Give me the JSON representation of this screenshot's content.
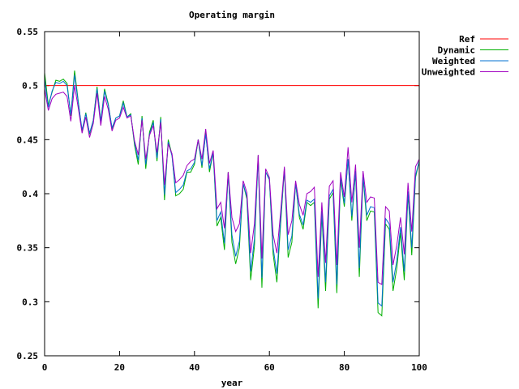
{
  "chart_data": {
    "type": "line",
    "title": "Operating margin",
    "xlabel": "year",
    "ylabel": "",
    "xlim": [
      0,
      100
    ],
    "ylim": [
      0.25,
      0.55
    ],
    "xticks": [
      0,
      20,
      40,
      60,
      80,
      100
    ],
    "xtick_labels": [
      "0",
      "20",
      "40",
      "60",
      "80",
      "100"
    ],
    "yticks": [
      0.25,
      0.3,
      0.35,
      0.4,
      0.45,
      0.5,
      0.55
    ],
    "ytick_labels": [
      "0.25",
      "0.3",
      "0.35",
      "0.4",
      "0.45",
      "0.5",
      "0.55"
    ],
    "grid": false,
    "legend_position": "top-right outside",
    "series": [
      {
        "name": "Ref",
        "color": "#ff0000",
        "x": [
          0,
          100
        ],
        "y": [
          0.5,
          0.5
        ]
      },
      {
        "name": "Dynamic",
        "color": "#00b000",
        "x": [
          0,
          1,
          2,
          3,
          4,
          5,
          6,
          7,
          8,
          9,
          10,
          11,
          12,
          13,
          14,
          15,
          16,
          17,
          18,
          19,
          20,
          21,
          22,
          23,
          24,
          25,
          26,
          27,
          28,
          29,
          30,
          31,
          32,
          33,
          34,
          35,
          36,
          37,
          38,
          39,
          40,
          41,
          42,
          43,
          44,
          45,
          46,
          47,
          48,
          49,
          50,
          51,
          52,
          53,
          54,
          55,
          56,
          57,
          58,
          59,
          60,
          61,
          62,
          63,
          64,
          65,
          66,
          67,
          68,
          69,
          70,
          71,
          72,
          73,
          74,
          75,
          76,
          77,
          78,
          79,
          80,
          81,
          82,
          83,
          84,
          85,
          86,
          87,
          88,
          89,
          90,
          91,
          92,
          93,
          94,
          95,
          96,
          97,
          98,
          99,
          100
        ],
        "y": [
          0.512,
          0.482,
          0.494,
          0.505,
          0.504,
          0.506,
          0.502,
          0.472,
          0.514,
          0.485,
          0.457,
          0.475,
          0.455,
          0.468,
          0.499,
          0.467,
          0.497,
          0.483,
          0.46,
          0.47,
          0.472,
          0.486,
          0.471,
          0.474,
          0.445,
          0.427,
          0.472,
          0.423,
          0.457,
          0.468,
          0.43,
          0.471,
          0.394,
          0.45,
          0.436,
          0.398,
          0.4,
          0.404,
          0.42,
          0.42,
          0.427,
          0.45,
          0.424,
          0.457,
          0.42,
          0.438,
          0.37,
          0.378,
          0.348,
          0.42,
          0.355,
          0.335,
          0.35,
          0.409,
          0.395,
          0.32,
          0.351,
          0.435,
          0.313,
          0.42,
          0.413,
          0.344,
          0.318,
          0.372,
          0.423,
          0.341,
          0.355,
          0.41,
          0.378,
          0.367,
          0.392,
          0.389,
          0.392,
          0.294,
          0.381,
          0.31,
          0.395,
          0.401,
          0.308,
          0.413,
          0.388,
          0.432,
          0.375,
          0.42,
          0.323,
          0.415,
          0.375,
          0.384,
          0.383,
          0.29,
          0.287,
          0.372,
          0.367,
          0.31,
          0.331,
          0.364,
          0.32,
          0.4,
          0.343,
          0.415,
          0.43
        ]
      },
      {
        "name": "Weighted",
        "color": "#0070d0",
        "x": [
          0,
          1,
          2,
          3,
          4,
          5,
          6,
          7,
          8,
          9,
          10,
          11,
          12,
          13,
          14,
          15,
          16,
          17,
          18,
          19,
          20,
          21,
          22,
          23,
          24,
          25,
          26,
          27,
          28,
          29,
          30,
          31,
          32,
          33,
          34,
          35,
          36,
          37,
          38,
          39,
          40,
          41,
          42,
          43,
          44,
          45,
          46,
          47,
          48,
          49,
          50,
          51,
          52,
          53,
          54,
          55,
          56,
          57,
          58,
          59,
          60,
          61,
          62,
          63,
          64,
          65,
          66,
          67,
          68,
          69,
          70,
          71,
          72,
          73,
          74,
          75,
          76,
          77,
          78,
          79,
          80,
          81,
          82,
          83,
          84,
          85,
          86,
          87,
          88,
          89,
          90,
          91,
          92,
          93,
          94,
          95,
          96,
          97,
          98,
          99,
          100
        ],
        "y": [
          0.506,
          0.48,
          0.495,
          0.503,
          0.502,
          0.504,
          0.5,
          0.473,
          0.51,
          0.484,
          0.459,
          0.474,
          0.456,
          0.468,
          0.497,
          0.467,
          0.495,
          0.482,
          0.461,
          0.47,
          0.472,
          0.484,
          0.471,
          0.473,
          0.447,
          0.431,
          0.47,
          0.427,
          0.455,
          0.466,
          0.433,
          0.469,
          0.399,
          0.448,
          0.435,
          0.401,
          0.404,
          0.408,
          0.421,
          0.423,
          0.429,
          0.45,
          0.426,
          0.455,
          0.423,
          0.438,
          0.375,
          0.383,
          0.354,
          0.419,
          0.362,
          0.342,
          0.356,
          0.409,
          0.397,
          0.328,
          0.358,
          0.433,
          0.322,
          0.42,
          0.413,
          0.35,
          0.326,
          0.376,
          0.423,
          0.348,
          0.361,
          0.41,
          0.381,
          0.371,
          0.394,
          0.392,
          0.395,
          0.303,
          0.384,
          0.318,
          0.398,
          0.404,
          0.316,
          0.415,
          0.391,
          0.432,
          0.379,
          0.421,
          0.331,
          0.416,
          0.38,
          0.388,
          0.387,
          0.299,
          0.296,
          0.377,
          0.372,
          0.318,
          0.338,
          0.369,
          0.328,
          0.402,
          0.35,
          0.417,
          0.43
        ]
      },
      {
        "name": "Unweighted",
        "color": "#a000c0",
        "x": [
          0,
          1,
          2,
          3,
          4,
          5,
          6,
          7,
          8,
          9,
          10,
          11,
          12,
          13,
          14,
          15,
          16,
          17,
          18,
          19,
          20,
          21,
          22,
          23,
          24,
          25,
          26,
          27,
          28,
          29,
          30,
          31,
          32,
          33,
          34,
          35,
          36,
          37,
          38,
          39,
          40,
          41,
          42,
          43,
          44,
          45,
          46,
          47,
          48,
          49,
          50,
          51,
          52,
          53,
          54,
          55,
          56,
          57,
          58,
          59,
          60,
          61,
          62,
          63,
          64,
          65,
          66,
          67,
          68,
          69,
          70,
          71,
          72,
          73,
          74,
          75,
          76,
          77,
          78,
          79,
          80,
          81,
          82,
          83,
          84,
          85,
          86,
          87,
          88,
          89,
          90,
          91,
          92,
          93,
          94,
          95,
          96,
          97,
          98,
          99,
          100
        ],
        "y": [
          0.497,
          0.477,
          0.488,
          0.492,
          0.493,
          0.494,
          0.49,
          0.467,
          0.5,
          0.479,
          0.456,
          0.471,
          0.452,
          0.465,
          0.493,
          0.463,
          0.49,
          0.478,
          0.458,
          0.468,
          0.47,
          0.48,
          0.47,
          0.472,
          0.449,
          0.436,
          0.468,
          0.432,
          0.454,
          0.463,
          0.438,
          0.466,
          0.408,
          0.446,
          0.437,
          0.41,
          0.413,
          0.417,
          0.426,
          0.43,
          0.432,
          0.45,
          0.432,
          0.46,
          0.428,
          0.44,
          0.386,
          0.392,
          0.368,
          0.42,
          0.378,
          0.365,
          0.372,
          0.412,
          0.401,
          0.345,
          0.372,
          0.436,
          0.34,
          0.423,
          0.415,
          0.362,
          0.345,
          0.383,
          0.425,
          0.362,
          0.375,
          0.412,
          0.39,
          0.38,
          0.4,
          0.402,
          0.406,
          0.323,
          0.392,
          0.336,
          0.407,
          0.412,
          0.334,
          0.42,
          0.397,
          0.443,
          0.392,
          0.427,
          0.35,
          0.421,
          0.392,
          0.397,
          0.396,
          0.318,
          0.316,
          0.388,
          0.384,
          0.334,
          0.352,
          0.378,
          0.344,
          0.41,
          0.365,
          0.425,
          0.432
        ]
      }
    ]
  }
}
